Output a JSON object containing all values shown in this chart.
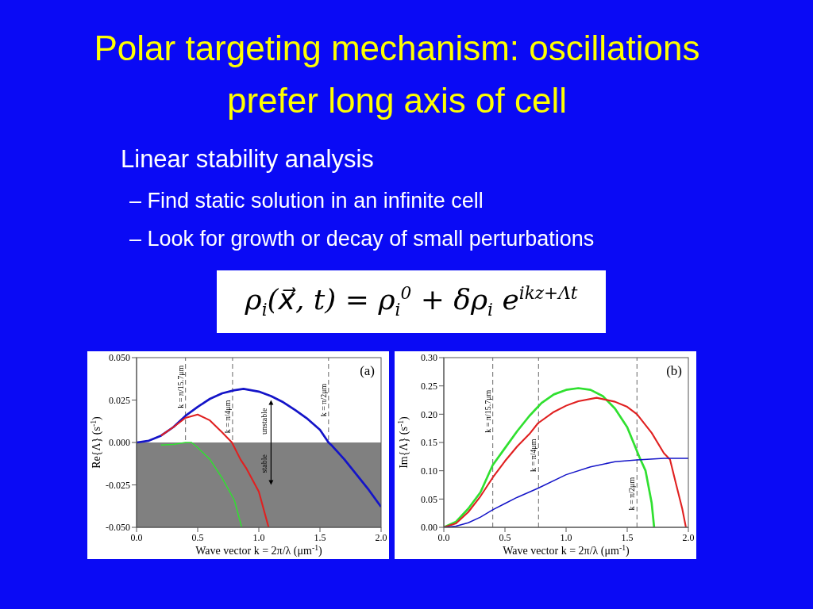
{
  "chart_data": [
    {
      "type": "other",
      "title": "Polar targeting mechanism: oscillations prefer long axis of cell",
      "annotations": [
        "Linear stability analysis",
        "– Find static solution in an infinite cell",
        "– Look for growth or decay of small perturbations",
        "ρ$_{i}$(x⃗, t) = ρ$_{i}$$^{0}$ + δρ$_{i}$ e$^{ikz+Λt}$"
      ]
    },
    {
      "type": "line",
      "xlabel": "Wave vector k = 2π/λ (μm$^{-1}$)",
      "ylabel": "Re{Λ} (s$^{-1}$)",
      "xlim": [
        0,
        2
      ],
      "ylim": [
        -0.05,
        0.05
      ],
      "xticks": [
        {
          "value": 0,
          "label": "0.0"
        },
        {
          "value": 0.5,
          "label": "0.5"
        },
        {
          "value": 1,
          "label": "1.0"
        },
        {
          "value": 1.5,
          "label": "1.5"
        },
        {
          "value": 2,
          "label": "2.0"
        }
      ],
      "yticks": [
        {
          "value": -0.05,
          "label": "-0.050"
        },
        {
          "value": -0.025,
          "label": "-0.025"
        },
        {
          "value": 0,
          "label": "0.000"
        },
        {
          "value": 0.025,
          "label": "0.025"
        },
        {
          "value": 0.05,
          "label": "0.050"
        }
      ],
      "series": [
        {
          "color": "#1414c8",
          "x": [
            0,
            0.1,
            0.2,
            0.3,
            0.4,
            0.5,
            0.6,
            0.7,
            0.8,
            0.875,
            1.0,
            1.1,
            1.2,
            1.3,
            1.4,
            1.5,
            1.57,
            1.6,
            1.7,
            1.8,
            1.9,
            2.0
          ],
          "values": [
            0,
            0.001,
            0.004,
            0.009,
            0.0157,
            0.021,
            0.0257,
            0.029,
            0.0308,
            0.0316,
            0.03,
            0.0273,
            0.0237,
            0.019,
            0.0138,
            0.0075,
            0,
            -0.002,
            -0.01,
            -0.019,
            -0.028,
            -0.038
          ]
        },
        {
          "color": "#e02020",
          "x": [
            0.2,
            0.3,
            0.4,
            0.5,
            0.6,
            0.7,
            0.78,
            0.85,
            0.9,
            1.0,
            1.08
          ],
          "values": [
            0.004,
            0.009,
            0.0145,
            0.0165,
            0.013,
            0.006,
            0,
            -0.01,
            -0.0155,
            -0.029,
            -0.05
          ]
        },
        {
          "color": "#30e030",
          "x": [
            0.2,
            0.3,
            0.4,
            0.45,
            0.5,
            0.6,
            0.7,
            0.8,
            0.86
          ],
          "values": [
            -0.0015,
            -0.0012,
            0,
            0,
            -0.003,
            -0.01,
            -0.021,
            -0.034,
            -0.05
          ]
        }
      ],
      "bands": [
        {
          "axis": "y",
          "from": -0.05,
          "to": 0,
          "color": "#808080"
        }
      ],
      "ref_lines": [
        {
          "axis": "x",
          "value": 0.4,
          "label": "k = π/15.7μm",
          "color": "#808080",
          "line_style": "dashed"
        },
        {
          "axis": "x",
          "value": 0.785,
          "label": "k = π/4μm",
          "color": "#808080",
          "line_style": "dashed"
        },
        {
          "axis": "x",
          "value": 1.57,
          "label": "k = π/2μm",
          "color": "#808080",
          "line_style": "dashed"
        }
      ],
      "annotations": [
        "(a)",
        "unstable",
        "stable"
      ]
    },
    {
      "type": "line",
      "xlabel": "Wave vector k = 2π/λ (μm$^{-1}$)",
      "ylabel": "Im{Λ} (s$^{-1}$)",
      "xlim": [
        0,
        2
      ],
      "ylim": [
        0,
        0.3
      ],
      "xticks": [
        {
          "value": 0,
          "label": "0.0"
        },
        {
          "value": 0.5,
          "label": "0.5"
        },
        {
          "value": 1,
          "label": "1.0"
        },
        {
          "value": 1.5,
          "label": "1.5"
        },
        {
          "value": 2,
          "label": "2.0"
        }
      ],
      "yticks": [
        {
          "value": 0,
          "label": "0.00"
        },
        {
          "value": 0.05,
          "label": "0.05"
        },
        {
          "value": 0.1,
          "label": "0.10"
        },
        {
          "value": 0.15,
          "label": "0.15"
        },
        {
          "value": 0.2,
          "label": "0.20"
        },
        {
          "value": 0.25,
          "label": "0.25"
        },
        {
          "value": 0.3,
          "label": "0.30"
        }
      ],
      "series": [
        {
          "color": "#30e030",
          "x": [
            0,
            0.1,
            0.2,
            0.3,
            0.4,
            0.5,
            0.6,
            0.7,
            0.8,
            0.9,
            1.0,
            1.1,
            1.2,
            1.3,
            1.4,
            1.5,
            1.6,
            1.65,
            1.7,
            1.72
          ],
          "values": [
            0,
            0.01,
            0.033,
            0.062,
            0.11,
            0.14,
            0.17,
            0.197,
            0.22,
            0.235,
            0.243,
            0.246,
            0.243,
            0.232,
            0.21,
            0.177,
            0.124,
            0.1,
            0.043,
            0
          ]
        },
        {
          "color": "#e02020",
          "x": [
            0,
            0.1,
            0.2,
            0.3,
            0.4,
            0.5,
            0.6,
            0.7,
            0.77,
            0.9,
            1.0,
            1.1,
            1.25,
            1.4,
            1.5,
            1.58,
            1.7,
            1.8,
            1.85,
            1.9,
            1.95,
            1.98
          ],
          "values": [
            0,
            0.007,
            0.027,
            0.055,
            0.088,
            0.117,
            0.143,
            0.165,
            0.184,
            0.204,
            0.215,
            0.223,
            0.229,
            0.222,
            0.213,
            0.2,
            0.167,
            0.131,
            0.12,
            0.076,
            0.033,
            0
          ]
        },
        {
          "color": "#1414c8",
          "x": [
            0,
            0.1,
            0.2,
            0.3,
            0.4,
            0.5,
            0.6,
            0.77,
            1.0,
            1.2,
            1.4,
            1.58,
            1.8,
            2.0
          ],
          "values": [
            0,
            0.002,
            0.008,
            0.018,
            0.031,
            0.042,
            0.053,
            0.069,
            0.093,
            0.107,
            0.116,
            0.119,
            0.122,
            0.122
          ]
        }
      ],
      "ref_lines": [
        {
          "axis": "x",
          "value": 0.4,
          "label": "k = π/15.7μm",
          "color": "#808080",
          "line_style": "dashed"
        },
        {
          "axis": "x",
          "value": 0.775,
          "label": "k = π/4μm",
          "color": "#808080",
          "line_style": "dashed"
        },
        {
          "axis": "x",
          "value": 1.58,
          "label": "k = π/2μm",
          "color": "#808080",
          "line_style": "dashed"
        }
      ],
      "annotations": [
        "(b)"
      ]
    }
  ]
}
